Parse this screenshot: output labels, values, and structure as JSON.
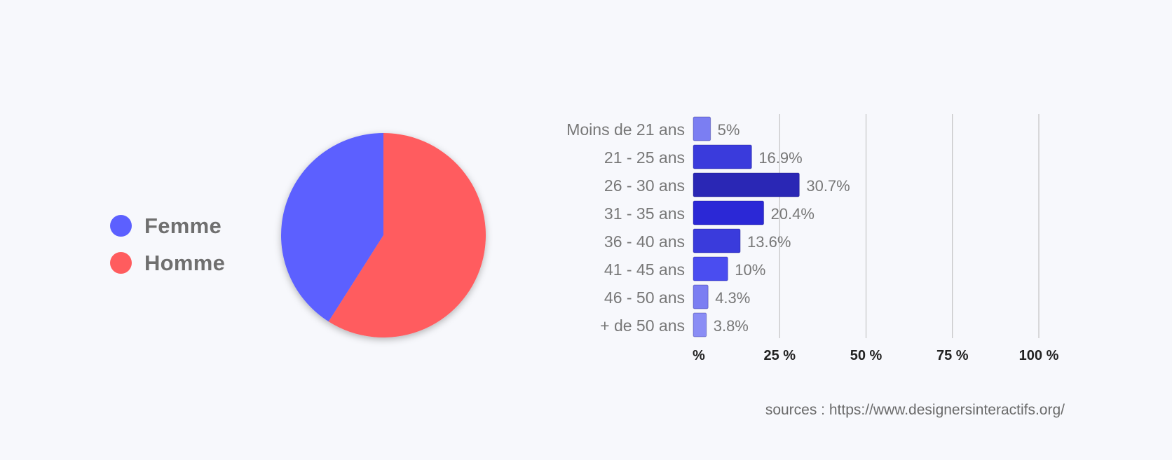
{
  "chart_data": [
    {
      "type": "pie",
      "series": [
        {
          "name": "Femme",
          "value": 41,
          "color": "#5c60ff"
        },
        {
          "name": "Homme",
          "value": 59,
          "color": "#ff5c5e"
        }
      ],
      "legend": "left"
    },
    {
      "type": "bar",
      "orientation": "horizontal",
      "categories": [
        "Moins de 21 ans",
        "21 - 25 ans",
        "26 - 30 ans",
        "31 - 35 ans",
        "36 - 40 ans",
        "41 - 45 ans",
        "46 - 50 ans",
        "+ de 50 ans"
      ],
      "values": [
        5,
        16.9,
        30.7,
        20.4,
        13.6,
        10,
        4.3,
        3.8
      ],
      "value_labels": [
        "5%",
        "16.9%",
        "30.7%",
        "20.4%",
        "13.6%",
        "10%",
        "4.3%",
        "3.8%"
      ],
      "colors": [
        "#7b7ef2",
        "#3a3bdc",
        "#2a27b5",
        "#2b28d6",
        "#3a3bdc",
        "#4a4df0",
        "#7b7ef2",
        "#8a8df5"
      ],
      "xlim": [
        0,
        100
      ],
      "xticks": [
        0,
        25,
        50,
        75,
        100
      ],
      "xtick_labels": [
        "%",
        "25 %",
        "50 %",
        "75 %",
        "100 %"
      ],
      "grid": true
    }
  ],
  "source": "sources : https://www.designersinteractifs.org/"
}
